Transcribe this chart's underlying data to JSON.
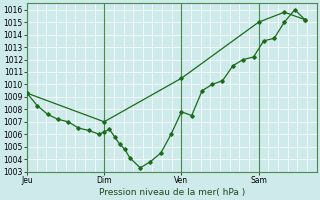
{
  "xlabel": "Pression niveau de la mer( hPa )",
  "bg_color": "#ceeaea",
  "grid_color": "#ffffff",
  "line_color": "#1a6b1a",
  "spine_color": "#4a8a4a",
  "ylim": [
    1003,
    1016.5
  ],
  "yticks": [
    1003,
    1004,
    1005,
    1006,
    1007,
    1008,
    1009,
    1010,
    1011,
    1012,
    1013,
    1014,
    1015,
    1016
  ],
  "day_labels": [
    "Jeu",
    "Dim",
    "Ven",
    "Sam"
  ],
  "day_positions": [
    0.0,
    0.333,
    0.667,
    1.0
  ],
  "xlim": [
    0.0,
    1.25
  ],
  "series1_x": [
    0.0,
    0.044,
    0.089,
    0.133,
    0.178,
    0.222,
    0.267,
    0.311,
    0.333,
    0.356,
    0.378,
    0.4,
    0.422,
    0.444,
    0.489,
    0.533,
    0.578,
    0.622,
    0.667,
    0.711,
    0.756,
    0.8,
    0.844,
    0.889,
    0.933,
    0.978,
    1.022,
    1.067,
    1.111,
    1.156,
    1.2
  ],
  "series1_y": [
    1009.3,
    1008.3,
    1007.6,
    1007.2,
    1007.0,
    1006.5,
    1006.3,
    1006.0,
    1006.2,
    1006.4,
    1005.8,
    1005.2,
    1004.8,
    1004.1,
    1003.3,
    1003.8,
    1004.5,
    1006.0,
    1007.8,
    1007.5,
    1009.5,
    1010.0,
    1010.3,
    1011.5,
    1012.0,
    1012.2,
    1013.5,
    1013.7,
    1015.0,
    1016.0,
    1015.2
  ],
  "series2_x": [
    0.0,
    0.333,
    0.667,
    1.0,
    1.111,
    1.2
  ],
  "series2_y": [
    1009.3,
    1007.0,
    1010.5,
    1015.0,
    1015.8,
    1015.2
  ],
  "xlabel_fontsize": 6.5,
  "tick_fontsize": 5.5
}
